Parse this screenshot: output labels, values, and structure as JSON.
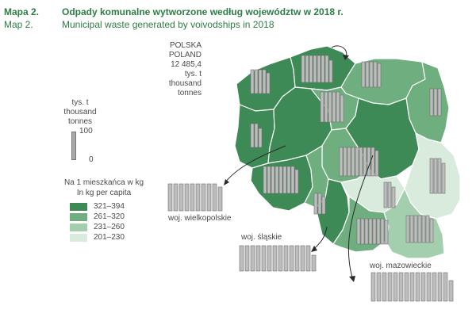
{
  "header": {
    "map_label_pl": "Mapa 2.",
    "map_label_en": "Map 2.",
    "title_pl": "Odpady komunalne wytworzone  według województw w 2018 r.",
    "title_en": "Municipal waste generated by voivodships in 2018"
  },
  "total": {
    "country_pl": "POLSKA",
    "country_en": "POLAND",
    "value": "12 485,4",
    "unit_pl": "tys. t",
    "unit_en": "thousand",
    "unit_en2": "tonnes"
  },
  "scale": {
    "unit_pl": "tys. t",
    "unit_en": "thousand",
    "unit_en2": "tonnes",
    "max": "100",
    "min": "0"
  },
  "legend": {
    "title_pl": "Na 1 mieszkańca w kg",
    "title_en": "In kg per capita",
    "classes": [
      {
        "label": "321–394",
        "color": "#3e8a56"
      },
      {
        "label": "261–320",
        "color": "#6fae7e"
      },
      {
        "label": "231–260",
        "color": "#a3cfae"
      },
      {
        "label": "201–230",
        "color": "#d8ebdc"
      }
    ]
  },
  "callouts": {
    "wielkopolskie": "woj. wielkopolskie",
    "slaskie": "woj. śląskie",
    "mazowieckie": "woj. mazowieckie"
  },
  "colors": {
    "accent": "#2e7d46",
    "border": "#ffffff",
    "bar_fill": "#bdbdbd",
    "bar_stroke": "#6e6e6e"
  }
}
